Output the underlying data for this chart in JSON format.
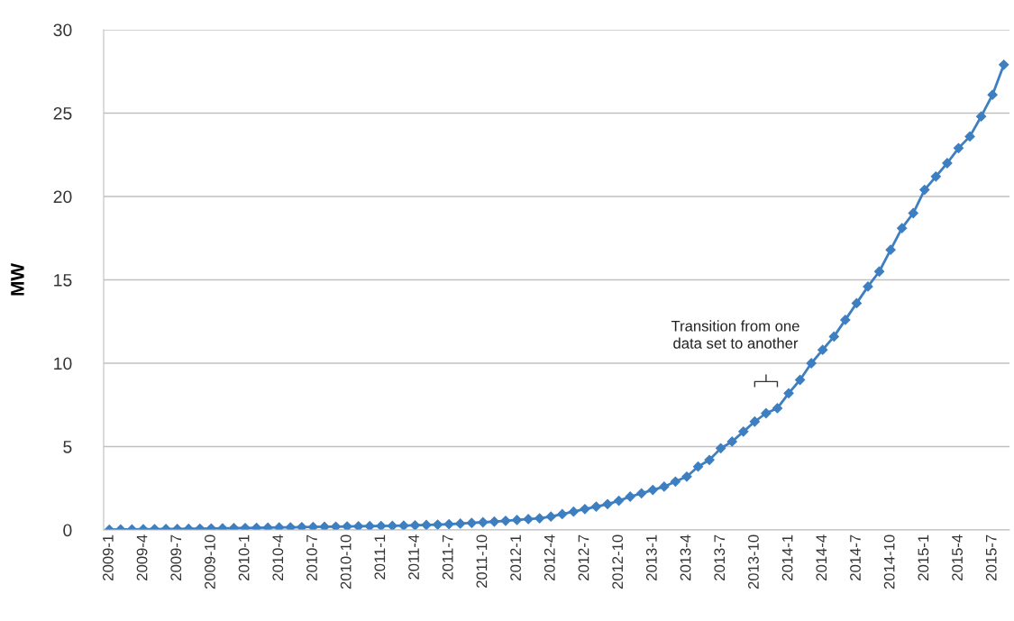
{
  "chart_data": {
    "type": "line",
    "ylabel": "MW",
    "categories": [
      "2009-1",
      null,
      null,
      "2009-4",
      null,
      null,
      "2009-7",
      null,
      null,
      "2009-10",
      null,
      null,
      "2010-1",
      null,
      null,
      "2010-4",
      null,
      null,
      "2010-7",
      null,
      null,
      "2010-10",
      null,
      null,
      "2011-1",
      null,
      null,
      "2011-4",
      null,
      null,
      "2011-7",
      null,
      null,
      "2011-10",
      null,
      null,
      "2012-1",
      null,
      null,
      "2012-4",
      null,
      null,
      "2012-7",
      null,
      null,
      "2012-10",
      null,
      null,
      "2013-1",
      null,
      null,
      "2013-4",
      null,
      null,
      "2013-7",
      null,
      null,
      "2013-10",
      null,
      null,
      "2014-1",
      null,
      null,
      "2014-4",
      null,
      null,
      "2014-7",
      null,
      null,
      "2014-10",
      null,
      null,
      "2015-1",
      null,
      null,
      "2015-4",
      null,
      null,
      "2015-7",
      null
    ],
    "series": [
      {
        "color": "#3d7fc1",
        "values": [
          0.02,
          0.03,
          0.03,
          0.04,
          0.05,
          0.06,
          0.06,
          0.07,
          0.08,
          0.09,
          0.1,
          0.11,
          0.12,
          0.13,
          0.14,
          0.15,
          0.16,
          0.17,
          0.18,
          0.19,
          0.2,
          0.21,
          0.22,
          0.23,
          0.24,
          0.25,
          0.26,
          0.28,
          0.3,
          0.32,
          0.35,
          0.38,
          0.42,
          0.46,
          0.5,
          0.55,
          0.6,
          0.65,
          0.7,
          0.8,
          0.95,
          1.1,
          1.25,
          1.4,
          1.55,
          1.75,
          2.0,
          2.2,
          2.4,
          2.6,
          2.9,
          3.2,
          3.8,
          4.2,
          4.9,
          5.3,
          5.9,
          6.5,
          7.0,
          7.3,
          8.2,
          9.0,
          10.0,
          10.8,
          11.6,
          12.6,
          13.6,
          14.6,
          15.5,
          16.8,
          18.1,
          19.0,
          20.4,
          21.2,
          22.0,
          22.9,
          23.6,
          24.8,
          26.1,
          27.9
        ]
      }
    ],
    "ylim": [
      0,
      30
    ],
    "yticks": [
      0,
      5,
      10,
      15,
      20,
      25,
      30
    ],
    "grid": "y",
    "marker": "diamond",
    "line_style": "solid",
    "legend": false,
    "annotations": [
      "Transition from one\ndata set to another"
    ]
  }
}
